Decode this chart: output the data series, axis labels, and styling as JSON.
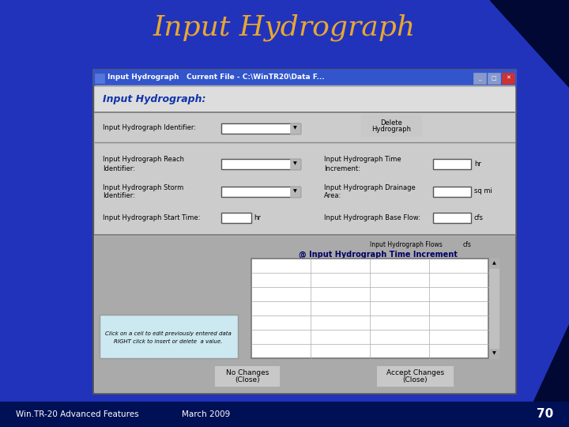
{
  "title": "Input Hydrograph",
  "title_color": "#E8A830",
  "footer_left": "Win.TR-20 Advanced Features",
  "footer_right": "March 2009",
  "footer_color": "#ffffff",
  "page_number": "70",
  "window_title": "Input Hydrograph   Current File - C:\\WinTR20\\Data F...",
  "window_bg": "#c0c0c0",
  "window_header_bg": "#3355CC",
  "dialog_title": "Input Hydrograph:",
  "dialog_title_color": "#1133aa",
  "label1": "Input Hydrograph Identifier:",
  "label2_1": "Input Hydrograph Reach",
  "label2_2": "Identifier:",
  "label3_1": "Input Hydrograph Storm",
  "label3_2": "Identifier:",
  "label4": "Input Hydrograph Start Time:",
  "label5_1": "Input Hydrograph Time",
  "label5_2": "Increment:",
  "label6_1": "Input Hydrograph Drainage",
  "label6_2": "Area:",
  "label7": "Input Hydrograph Base Flow:",
  "unit1": "hr",
  "unit2": "sq mi",
  "unit3": "cfs",
  "unit4": "hr",
  "btn_delete_1": "Delete",
  "btn_delete_2": "Hydrograph",
  "btn_no_changes_1": "No Changes",
  "btn_no_changes_2": "(Close)",
  "btn_accept_1": "Accept Changes",
  "btn_accept_2": "(Close)",
  "table_label1": "Input Hydrograph Flows",
  "table_label2": "cfs",
  "table_label3": "@ Input Hydrograph Time Increment",
  "hint_line1": "Click on a cell to edit previously entered data",
  "hint_line2": "RIGHT click to insert or delete  a value.",
  "hint_bg": "#cce8f0",
  "bg_blue": "#2233bb",
  "bg_dark": "#000833",
  "inner_bg": "#aaaaaa"
}
